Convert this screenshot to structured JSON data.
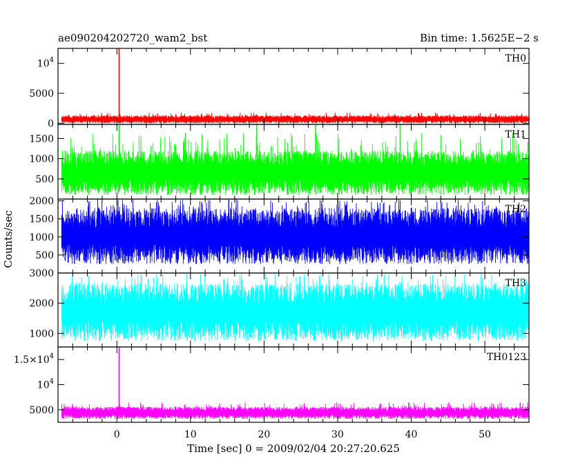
{
  "chart_data": {
    "type": "line",
    "title": "ae090204202720_wam2_bst",
    "subtitle": "Bin time: 1.5625E−2 s",
    "xlabel": "Time [sec] 0 = 2009/02/04 20:27:20.625",
    "ylabel": "Counts/sec",
    "xlim": [
      -8,
      56
    ],
    "x_range_of_data": [
      -7.5,
      56
    ],
    "x_ticks": [
      0,
      10,
      20,
      30,
      40,
      50
    ],
    "x_tick_labels": [
      "0",
      "10",
      "20",
      "30",
      "40",
      "50"
    ],
    "grid": false,
    "legend": "none",
    "panels": [
      {
        "name": "TH0",
        "color": "#ff0000",
        "ylim": [
          -200,
          12500
        ],
        "yticks": [
          0,
          5000,
          10000
        ],
        "ytick_labels": [
          {
            "mantissa": "0"
          },
          {
            "mantissa": "5000"
          },
          {
            "base": "10",
            "exp": "4"
          }
        ],
        "baseline_min": 0,
        "baseline_max": 1300,
        "typical_peak": 1800,
        "spikes": [
          {
            "x": 0.3,
            "y": 12500
          }
        ]
      },
      {
        "name": "TH1",
        "color": "#00ff00",
        "ylim": [
          0,
          1850
        ],
        "yticks": [
          500,
          1000,
          1500
        ],
        "ytick_labels": [
          {
            "mantissa": "500"
          },
          {
            "mantissa": "1000"
          },
          {
            "mantissa": "1500"
          }
        ],
        "baseline_min": 100,
        "baseline_max": 1200,
        "typical_peak": 1650,
        "spikes": [
          {
            "x": 0.3,
            "y": 1850
          },
          {
            "x": 19.0,
            "y": 1850
          },
          {
            "x": 27.0,
            "y": 1850
          },
          {
            "x": 38.5,
            "y": 1850
          }
        ]
      },
      {
        "name": "TH2",
        "color": "#0000ff",
        "ylim": [
          0,
          2050
        ],
        "yticks": [
          500,
          1000,
          1500,
          2000
        ],
        "ytick_labels": [
          {
            "mantissa": "500"
          },
          {
            "mantissa": "1000"
          },
          {
            "mantissa": "1500"
          },
          {
            "mantissa": "2000"
          }
        ],
        "baseline_min": 250,
        "baseline_max": 1800,
        "typical_peak": 2050,
        "spikes": []
      },
      {
        "name": "TH3",
        "color": "#00ffff",
        "ylim": [
          550,
          3000
        ],
        "yticks": [
          1000,
          2000,
          3000
        ],
        "ytick_labels": [
          {
            "mantissa": "1000"
          },
          {
            "mantissa": "2000"
          },
          {
            "mantissa": "3000"
          }
        ],
        "baseline_min": 750,
        "baseline_max": 2650,
        "typical_peak": 3000,
        "spikes": []
      },
      {
        "name": "TH0123",
        "color": "#ff00ff",
        "ylim": [
          2500,
          17500
        ],
        "yticks": [
          5000,
          10000,
          15000
        ],
        "ytick_labels": [
          {
            "mantissa": "5000"
          },
          {
            "base": "10",
            "exp": "4"
          },
          {
            "mantissa": "1.5×10",
            "exp": "4"
          }
        ],
        "baseline_min": 3200,
        "baseline_max": 5600,
        "typical_peak": 6500,
        "spikes": [
          {
            "x": 0.3,
            "y": 17500
          }
        ]
      }
    ]
  }
}
